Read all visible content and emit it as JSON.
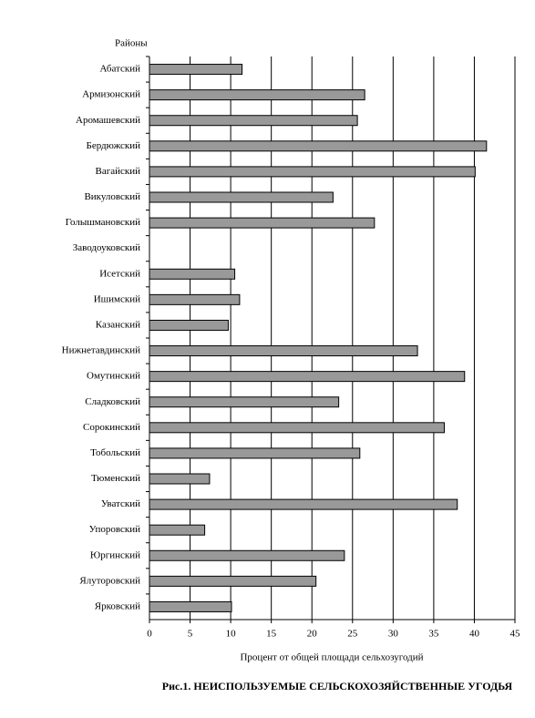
{
  "chart_data": {
    "type": "bar",
    "orientation": "horizontal",
    "title": "Рис.1. НЕИСПОЛЬЗУЕМЫЕ СЕЛЬСКОХОЗЯЙСТВЕННЫЕ УГОДЬЯ",
    "y_label": "Районы",
    "x_label": "Процент от общей площади сельхозугодий",
    "categories": [
      "Абатский",
      "Армизонский",
      "Аромашевский",
      "Бердюжский",
      "Вагайский",
      "Викуловский",
      "Голышмановский",
      "Заводоуковский",
      "Исетский",
      "Ишимский",
      "Казанский",
      "Нижнетавдинский",
      "Омутинский",
      "Сладковский",
      "Сорокинский",
      "Тобольский",
      "Тюменский",
      "Уватский",
      "Упоровский",
      "Юргинский",
      "Ялуторовский",
      "Ярковский"
    ],
    "values": [
      11.4,
      26.5,
      25.6,
      41.5,
      40.1,
      22.6,
      27.7,
      0,
      10.5,
      11.1,
      9.7,
      33.0,
      38.8,
      23.3,
      36.3,
      25.9,
      7.4,
      37.9,
      6.8,
      24.0,
      20.5,
      10.1
    ],
    "color": "#999999",
    "xlim": [
      0,
      45
    ],
    "xticks": [
      0,
      5,
      10,
      15,
      20,
      25,
      30,
      35,
      40,
      45
    ],
    "grid": true
  }
}
